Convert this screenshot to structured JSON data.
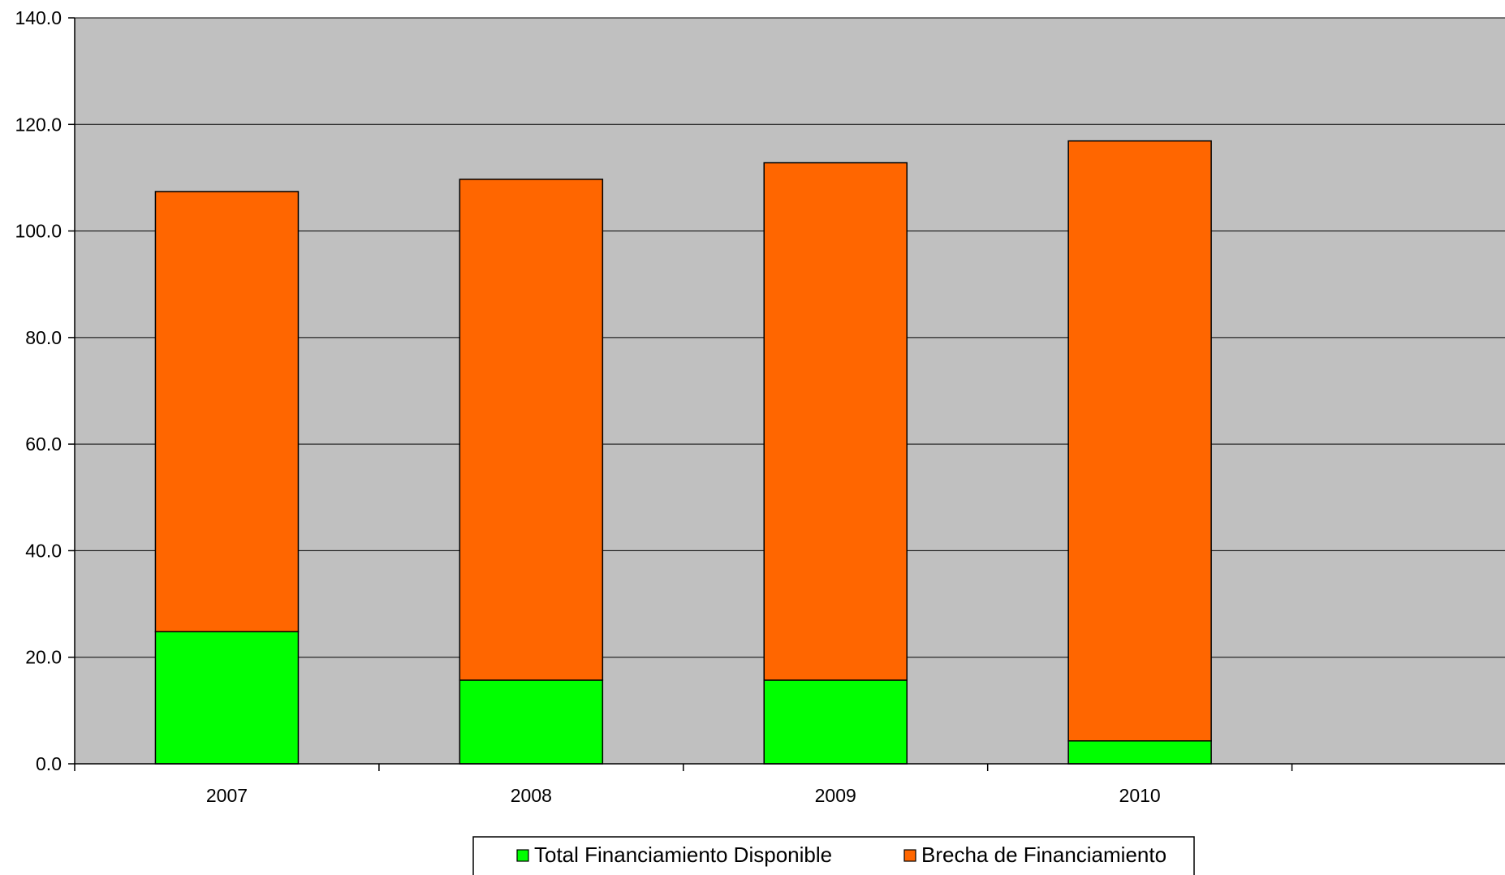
{
  "chart_data": {
    "type": "bar",
    "stacked": true,
    "categories": [
      "2007",
      "2008",
      "2009",
      "2010"
    ],
    "series": [
      {
        "name": "Total Financiamiento Disponible",
        "color": "#00FF00",
        "values": [
          24.8,
          15.7,
          15.7,
          4.3
        ]
      },
      {
        "name": "Brecha de Financiamiento",
        "color": "#FF6600",
        "values": [
          82.6,
          94.0,
          97.1,
          112.6
        ]
      }
    ],
    "ylim": [
      0,
      140
    ],
    "yticks": [
      "0.0",
      "20.0",
      "40.0",
      "60.0",
      "80.0",
      "100.0",
      "120.0",
      "140.0"
    ],
    "grid": true,
    "plot_background": "#C0C0C0",
    "legend_position": "bottom-center",
    "title": "",
    "xlabel": "",
    "ylabel": ""
  }
}
